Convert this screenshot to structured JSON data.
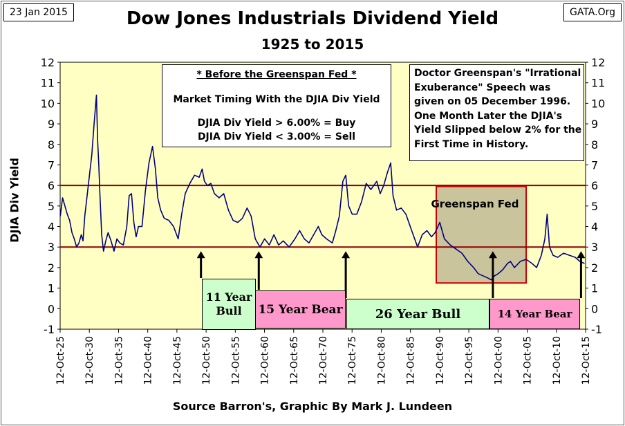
{
  "header": {
    "date": "23 Jan 2015",
    "site": "GATA.Org",
    "title": "Dow Jones Industrials Dividend Yield",
    "subtitle": "1925 to 2015"
  },
  "footer": {
    "source": "Source Barron's, Graphic By Mark J. Lundeen"
  },
  "notes": {
    "left": {
      "heading": "* Before the Greenspan Fed *",
      "line1": "Market Timing With the DJIA Div Yield",
      "line2": "DJIA Div Yield > 6.00% = Buy",
      "line3": "DJIA Div Yield < 3.00% = Sell"
    },
    "right": "Doctor Greenspan's \"Irrational Exuberance\" Speech was given on 05 December 1996.  One Month Later the DJIA's Yield Slipped below 2% for the First Time in History.",
    "greenspan": "Greenspan Fed"
  },
  "eras": [
    {
      "label": "11 Year Bull",
      "start": 1949.8,
      "end": 1960.0,
      "color": "#ccffcc"
    },
    {
      "label": "15 Year Bear",
      "start": 1960.0,
      "end": 1975.0,
      "color": "#ff99cc"
    },
    {
      "label": "26 Year Bull",
      "start": 1975.0,
      "end": 2000.0,
      "color": "#ccffcc"
    },
    {
      "label": "14 Year Bear",
      "start": 2000.0,
      "end": 2015.0,
      "color": "#ff99cc"
    }
  ],
  "colors": {
    "plot_bg": "#ffffc4",
    "line": "#000080",
    "ref": "#8b0000",
    "greenspan_box": "#b8b090"
  },
  "chart_data": {
    "type": "line",
    "title": "Dow Jones Industrials Dividend Yield",
    "subtitle": "1925 to 2015",
    "xlabel": "",
    "ylabel": "DJIA Div Yield",
    "ylim": [
      -1,
      12
    ],
    "xlim": [
      1925.78,
      2015.78
    ],
    "grid": false,
    "y_ticks": [
      "-1",
      "0",
      "1",
      "2",
      "3",
      "4",
      "5",
      "6",
      "7",
      "8",
      "9",
      "10",
      "11",
      "12"
    ],
    "x_ticks": [
      "12-Oct-25",
      "12-Oct-30",
      "12-Oct-35",
      "12-Oct-40",
      "12-Oct-45",
      "12-Oct-50",
      "12-Oct-55",
      "12-Oct-60",
      "12-Oct-65",
      "12-Oct-70",
      "12-Oct-75",
      "12-Oct-80",
      "12-Oct-85",
      "12-Oct-90",
      "12-Oct-95",
      "12-Oct-00",
      "12-Oct-05",
      "12-Oct-10",
      "12-Oct-15"
    ],
    "reference_lines": [
      3,
      6
    ],
    "markers": [
      1949.9,
      1959.8,
      1974.7,
      1999.9,
      2015.0
    ],
    "series": [
      {
        "x": [
          1925.8,
          1926.2,
          1926.6,
          1927.0,
          1927.4,
          1927.8,
          1928.2,
          1928.6,
          1929.0,
          1929.4,
          1929.7,
          1930.0,
          1930.4,
          1930.8,
          1931.2,
          1931.6,
          1932.0,
          1932.2,
          1932.4,
          1932.6,
          1932.9,
          1933.2,
          1933.6,
          1934.0,
          1934.5,
          1935.0,
          1935.5,
          1936.0,
          1936.6,
          1937.2,
          1937.6,
          1938.0,
          1938.4,
          1938.8,
          1939.2,
          1939.8,
          1940.4,
          1941.0,
          1941.6,
          1942.1,
          1942.5,
          1943.0,
          1943.6,
          1944.4,
          1945.2,
          1946.0,
          1946.6,
          1947.2,
          1948.0,
          1948.8,
          1949.6,
          1950.1,
          1950.5,
          1951.0,
          1951.6,
          1952.2,
          1953.0,
          1953.8,
          1954.6,
          1955.4,
          1956.2,
          1957.0,
          1957.8,
          1958.5,
          1959.2,
          1960.0,
          1960.8,
          1961.6,
          1962.4,
          1963.2,
          1964.0,
          1965.0,
          1966.0,
          1966.8,
          1967.6,
          1968.4,
          1969.2,
          1970.0,
          1970.6,
          1971.4,
          1972.4,
          1973.0,
          1973.6,
          1974.2,
          1974.7,
          1975.2,
          1975.8,
          1976.6,
          1977.4,
          1978.2,
          1979.0,
          1980.0,
          1980.6,
          1981.2,
          1981.8,
          1982.4,
          1982.8,
          1983.4,
          1984.2,
          1985.0,
          1986.0,
          1987.0,
          1987.8,
          1988.6,
          1989.4,
          1990.0,
          1990.8,
          1991.6,
          1992.6,
          1993.6,
          1994.6,
          1995.6,
          1996.6,
          1997.4,
          1998.2,
          1999.0,
          1999.6,
          2000.2,
          2000.8,
          2001.6,
          2002.4,
          2002.9,
          2003.6,
          2004.6,
          2005.6,
          2006.6,
          2007.4,
          2008.2,
          2008.8,
          2009.2,
          2009.6,
          2010.2,
          2011.0,
          2012.0,
          2013.0,
          2014.0,
          2014.8,
          2015.6
        ],
        "y": [
          4.5,
          5.4,
          5.0,
          4.6,
          4.3,
          3.7,
          3.4,
          3.0,
          3.2,
          3.6,
          3.3,
          4.5,
          5.5,
          6.5,
          7.5,
          9.0,
          10.4,
          8.2,
          7.0,
          5.5,
          3.6,
          2.8,
          3.3,
          3.7,
          3.3,
          2.8,
          3.4,
          3.2,
          3.1,
          4.0,
          5.5,
          5.6,
          4.2,
          3.5,
          4.0,
          4.0,
          5.8,
          7.1,
          7.9,
          6.8,
          5.4,
          4.8,
          4.4,
          4.3,
          4.0,
          3.4,
          4.6,
          5.6,
          6.1,
          6.5,
          6.4,
          6.8,
          6.2,
          6.0,
          6.1,
          5.6,
          5.4,
          5.6,
          4.8,
          4.3,
          4.2,
          4.4,
          4.9,
          4.5,
          3.4,
          3.0,
          3.4,
          3.1,
          3.6,
          3.1,
          3.3,
          3.0,
          3.4,
          3.8,
          3.4,
          3.2,
          3.6,
          4.0,
          3.6,
          3.4,
          3.2,
          3.8,
          4.5,
          6.2,
          6.5,
          5.0,
          4.6,
          4.6,
          5.2,
          6.1,
          5.8,
          6.2,
          5.6,
          6.0,
          6.6,
          7.1,
          5.5,
          4.8,
          4.9,
          4.6,
          3.8,
          3.0,
          3.6,
          3.8,
          3.5,
          3.7,
          4.2,
          3.4,
          3.1,
          2.9,
          2.7,
          2.3,
          2.0,
          1.7,
          1.6,
          1.5,
          1.4,
          1.6,
          1.7,
          1.9,
          2.2,
          2.3,
          2.0,
          2.3,
          2.4,
          2.2,
          2.0,
          2.6,
          3.4,
          4.6,
          3.0,
          2.6,
          2.5,
          2.7,
          2.6,
          2.5,
          2.3,
          2.2
        ]
      }
    ]
  }
}
